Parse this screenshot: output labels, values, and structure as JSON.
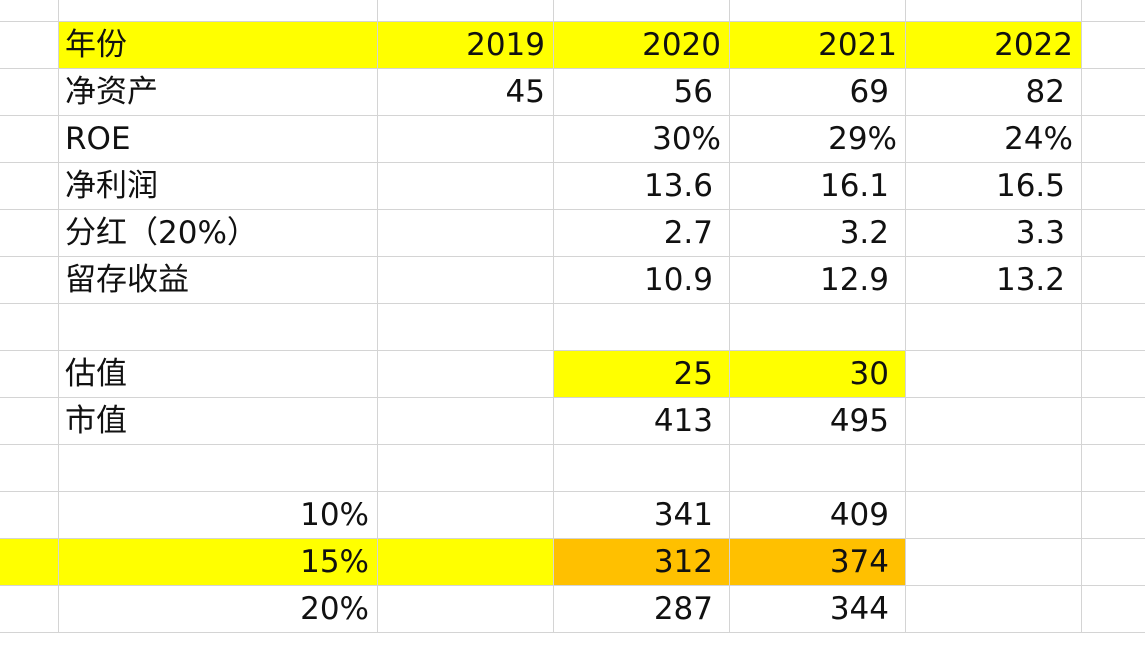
{
  "sheet": {
    "colors": {
      "highlight_yellow": "#ffff00",
      "highlight_orange": "#ffc000",
      "grid": "#d4d4d4"
    },
    "rows": [
      {
        "label": "",
        "v2019": "",
        "v2020": "",
        "v2021": "",
        "v2022": ""
      },
      {
        "label": "年份",
        "v2019": "2019",
        "v2020": "2020",
        "v2021": "2021",
        "v2022": "2022"
      },
      {
        "label": "净资产",
        "v2019": "45",
        "v2020": "56",
        "v2021": "69",
        "v2022": "82"
      },
      {
        "label": "ROE",
        "v2019": "",
        "v2020": "30%",
        "v2021": "29%",
        "v2022": "24%"
      },
      {
        "label": "净利润",
        "v2019": "",
        "v2020": "13.6",
        "v2021": "16.1",
        "v2022": "16.5"
      },
      {
        "label": "分红（20%）",
        "v2019": "",
        "v2020": "2.7",
        "v2021": "3.2",
        "v2022": "3.3"
      },
      {
        "label": "留存收益",
        "v2019": "",
        "v2020": "10.9",
        "v2021": "12.9",
        "v2022": "13.2"
      },
      {
        "label": "",
        "v2019": "",
        "v2020": "",
        "v2021": "",
        "v2022": ""
      },
      {
        "label": "估值",
        "v2019": "",
        "v2020": "25",
        "v2021": "30",
        "v2022": ""
      },
      {
        "label": "市值",
        "v2019": "",
        "v2020": "413",
        "v2021": "495",
        "v2022": ""
      },
      {
        "label": "",
        "v2019": "",
        "v2020": "",
        "v2021": "",
        "v2022": ""
      },
      {
        "label": "10%",
        "v2019": "",
        "v2020": "341",
        "v2021": "409",
        "v2022": ""
      },
      {
        "label": "15%",
        "v2019": "",
        "v2020": "312",
        "v2021": "374",
        "v2022": ""
      },
      {
        "label": "20%",
        "v2019": "",
        "v2020": "287",
        "v2021": "344",
        "v2022": ""
      }
    ]
  }
}
